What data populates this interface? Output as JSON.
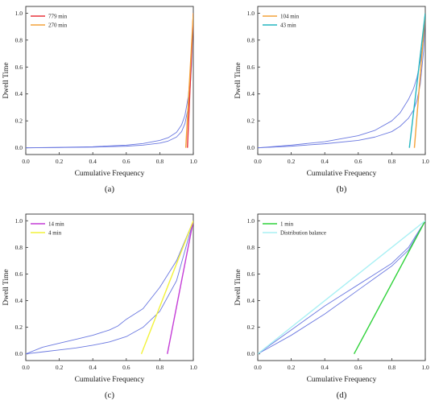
{
  "chart_data": [
    {
      "type": "line",
      "panel_label": "(a)",
      "xlabel": "Cumulative Frequency",
      "ylabel": "Dwell Time",
      "xlim": [
        0.0,
        1.0
      ],
      "ylim": [
        -0.05,
        1.05
      ],
      "xticks": [
        "0.0",
        "0.2",
        "0.4",
        "0.6",
        "0.8",
        "1.0"
      ],
      "yticks": [
        "0.0",
        "0.2",
        "0.4",
        "0.6",
        "0.8",
        "1.0"
      ],
      "legend_position": "top-left",
      "series": [
        {
          "name": "779 min",
          "color": "#e8333b",
          "x": [
            0.965,
            1.0
          ],
          "y": [
            0.0,
            1.0
          ]
        },
        {
          "name": "270 min",
          "color": "#f3a23a",
          "x": [
            0.955,
            1.0
          ],
          "y": [
            0.0,
            1.0
          ]
        },
        {
          "name": "",
          "color": "#6a78e0",
          "x": [
            0.0,
            0.2,
            0.4,
            0.6,
            0.7,
            0.8,
            0.85,
            0.9,
            0.93,
            0.95,
            0.97,
            0.98,
            0.99,
            1.0
          ],
          "y": [
            0.0,
            0.002,
            0.005,
            0.012,
            0.02,
            0.035,
            0.05,
            0.08,
            0.12,
            0.18,
            0.3,
            0.42,
            0.62,
            1.0
          ]
        },
        {
          "name": "",
          "color": "#6a78e0",
          "x": [
            0.0,
            0.2,
            0.4,
            0.6,
            0.7,
            0.8,
            0.85,
            0.9,
            0.93,
            0.95,
            0.97,
            0.98,
            0.99,
            1.0
          ],
          "y": [
            0.0,
            0.003,
            0.008,
            0.02,
            0.032,
            0.055,
            0.075,
            0.115,
            0.17,
            0.24,
            0.38,
            0.52,
            0.7,
            1.0
          ]
        }
      ]
    },
    {
      "type": "line",
      "panel_label": "(b)",
      "xlabel": "Cumulative Frequency",
      "ylabel": "Dwell Time",
      "xlim": [
        0.0,
        1.0
      ],
      "ylim": [
        -0.05,
        1.05
      ],
      "xticks": [
        "0.0",
        "0.2",
        "0.4",
        "0.6",
        "0.8",
        "1.0"
      ],
      "yticks": [
        "0.0",
        "0.2",
        "0.4",
        "0.6",
        "0.8",
        "1.0"
      ],
      "legend_position": "top-left",
      "series": [
        {
          "name": "104 min",
          "color": "#f3a23a",
          "x": [
            0.935,
            1.0
          ],
          "y": [
            0.0,
            1.0
          ]
        },
        {
          "name": "43 min",
          "color": "#23b6c0",
          "x": [
            0.905,
            1.0
          ],
          "y": [
            0.0,
            1.0
          ]
        },
        {
          "name": "",
          "color": "#6a78e0",
          "x": [
            0.0,
            0.2,
            0.4,
            0.6,
            0.7,
            0.8,
            0.85,
            0.9,
            0.93,
            0.95,
            0.97,
            0.99,
            1.0
          ],
          "y": [
            0.0,
            0.02,
            0.045,
            0.09,
            0.13,
            0.2,
            0.26,
            0.36,
            0.44,
            0.52,
            0.64,
            0.82,
            1.0
          ]
        },
        {
          "name": "",
          "color": "#6a78e0",
          "x": [
            0.0,
            0.2,
            0.4,
            0.6,
            0.7,
            0.8,
            0.85,
            0.9,
            0.93,
            0.95,
            0.97,
            0.99,
            1.0
          ],
          "y": [
            0.0,
            0.012,
            0.03,
            0.055,
            0.08,
            0.12,
            0.16,
            0.22,
            0.28,
            0.35,
            0.47,
            0.72,
            1.0
          ]
        }
      ]
    },
    {
      "type": "line",
      "panel_label": "(c)",
      "xlabel": "Cumulative Frequency",
      "ylabel": "Dwell Time",
      "xlim": [
        0.0,
        1.0
      ],
      "ylim": [
        -0.05,
        1.05
      ],
      "xticks": [
        "0.0",
        "0.2",
        "0.4",
        "0.6",
        "0.8",
        "1.0"
      ],
      "yticks": [
        "0.0",
        "0.2",
        "0.4",
        "0.6",
        "0.8",
        "1.0"
      ],
      "legend_position": "top-left",
      "series": [
        {
          "name": "14 min",
          "color": "#c43cd6",
          "x": [
            0.845,
            1.0
          ],
          "y": [
            0.0,
            1.0
          ]
        },
        {
          "name": "4 min",
          "color": "#f2f23a",
          "x": [
            0.69,
            1.0
          ],
          "y": [
            0.0,
            1.0
          ]
        },
        {
          "name": "",
          "color": "#6a78e0",
          "x": [
            0.0,
            0.1,
            0.2,
            0.3,
            0.4,
            0.5,
            0.55,
            0.6,
            0.7,
            0.8,
            0.9,
            1.0
          ],
          "y": [
            0.0,
            0.05,
            0.08,
            0.11,
            0.14,
            0.18,
            0.21,
            0.26,
            0.34,
            0.5,
            0.7,
            1.0
          ]
        },
        {
          "name": "",
          "color": "#6a78e0",
          "x": [
            0.0,
            0.1,
            0.2,
            0.3,
            0.4,
            0.5,
            0.6,
            0.7,
            0.8,
            0.9,
            1.0
          ],
          "y": [
            0.0,
            0.015,
            0.03,
            0.045,
            0.065,
            0.09,
            0.13,
            0.2,
            0.32,
            0.55,
            1.0
          ]
        }
      ]
    },
    {
      "type": "line",
      "panel_label": "(d)",
      "xlabel": "Cumulative Frequency",
      "ylabel": "Dwell Time",
      "xlim": [
        0.0,
        1.0
      ],
      "ylim": [
        -0.05,
        1.05
      ],
      "xticks": [
        "0.0",
        "0.2",
        "0.4",
        "0.6",
        "0.8",
        "1.0"
      ],
      "yticks": [
        "0.0",
        "0.2",
        "0.4",
        "0.6",
        "0.8",
        "1.0"
      ],
      "legend_position": "top-left",
      "series": [
        {
          "name": "1 min",
          "color": "#2fd23a",
          "x": [
            0.575,
            1.0
          ],
          "y": [
            0.0,
            1.0
          ]
        },
        {
          "name": "Distribution balance",
          "color": "#a8f0f4",
          "x": [
            0.0,
            1.0
          ],
          "y": [
            0.0,
            1.0
          ]
        },
        {
          "name": "",
          "color": "#6a78e0",
          "x": [
            0.0,
            0.2,
            0.4,
            0.5,
            0.6,
            0.7,
            0.8,
            0.9,
            1.0
          ],
          "y": [
            0.0,
            0.18,
            0.36,
            0.44,
            0.52,
            0.6,
            0.68,
            0.8,
            1.0
          ]
        },
        {
          "name": "",
          "color": "#6a78e0",
          "x": [
            0.0,
            0.2,
            0.4,
            0.5,
            0.6,
            0.7,
            0.8,
            0.9,
            1.0
          ],
          "y": [
            0.0,
            0.14,
            0.3,
            0.39,
            0.48,
            0.57,
            0.66,
            0.78,
            1.0
          ]
        }
      ]
    }
  ]
}
